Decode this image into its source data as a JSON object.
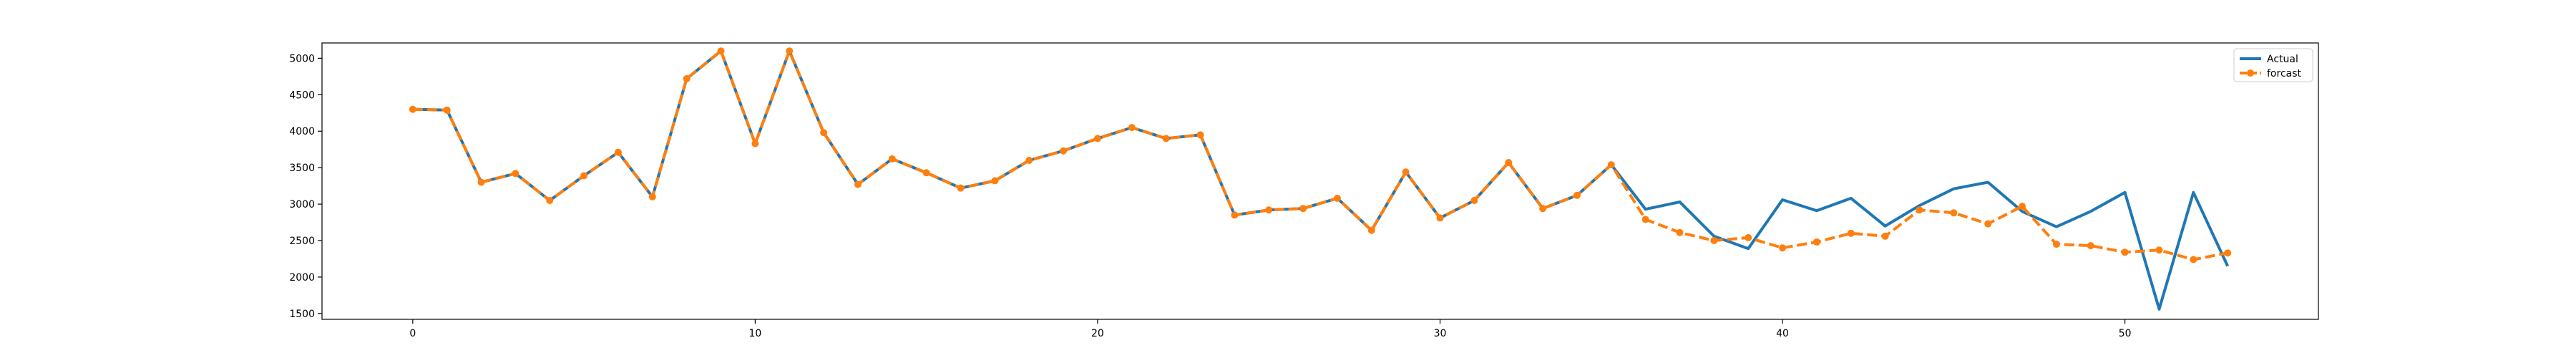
{
  "chart_data": {
    "type": "line",
    "title": "",
    "xlabel": "",
    "ylabel": "",
    "xlim": [
      -2.65,
      55.65
    ],
    "ylim": [
      1420,
      5210
    ],
    "xticks": [
      0,
      10,
      20,
      30,
      40,
      50
    ],
    "yticks": [
      1500,
      2000,
      2500,
      3000,
      3500,
      4000,
      4500,
      5000
    ],
    "grid": false,
    "legend": "top-right",
    "series": [
      {
        "name": "Actual",
        "color": "#1f77b4",
        "style": "solid",
        "marker": "none",
        "x": [
          0,
          1,
          2,
          3,
          4,
          5,
          6,
          7,
          8,
          9,
          10,
          11,
          12,
          13,
          14,
          15,
          16,
          17,
          18,
          19,
          20,
          21,
          22,
          23,
          24,
          25,
          26,
          27,
          28,
          29,
          30,
          31,
          32,
          33,
          34,
          35,
          36,
          37,
          38,
          39,
          40,
          41,
          42,
          43,
          44,
          45,
          46,
          47,
          48,
          49,
          50,
          51,
          52,
          53
        ],
        "values": [
          4300,
          4290,
          3300,
          3420,
          3050,
          3390,
          3710,
          3100,
          4720,
          5100,
          3830,
          5100,
          3980,
          3270,
          3620,
          3430,
          3220,
          3320,
          3600,
          3730,
          3900,
          4050,
          3900,
          3950,
          2850,
          2920,
          2940,
          3080,
          2640,
          3440,
          2810,
          3050,
          3570,
          2940,
          3120,
          3540,
          2930,
          3030,
          2560,
          2390,
          3060,
          2910,
          3080,
          2700,
          2980,
          3210,
          3300,
          2900,
          2690,
          2900,
          3160,
          1560,
          3160,
          2150
        ]
      },
      {
        "name": "forcast",
        "color": "#ff7f0e",
        "style": "dashed",
        "marker": "circle",
        "x": [
          0,
          1,
          2,
          3,
          4,
          5,
          6,
          7,
          8,
          9,
          10,
          11,
          12,
          13,
          14,
          15,
          16,
          17,
          18,
          19,
          20,
          21,
          22,
          23,
          24,
          25,
          26,
          27,
          28,
          29,
          30,
          31,
          32,
          33,
          34,
          35,
          36,
          37,
          38,
          39,
          40,
          41,
          42,
          43,
          44,
          45,
          46,
          47,
          48,
          49,
          50,
          51,
          52,
          53
        ],
        "values": [
          4300,
          4290,
          3300,
          3420,
          3050,
          3390,
          3710,
          3100,
          4720,
          5100,
          3830,
          5100,
          3980,
          3270,
          3620,
          3430,
          3220,
          3320,
          3600,
          3730,
          3900,
          4050,
          3900,
          3950,
          2850,
          2920,
          2940,
          3080,
          2640,
          3440,
          2810,
          3050,
          3570,
          2940,
          3120,
          3540,
          2790,
          2610,
          2500,
          2540,
          2400,
          2480,
          2600,
          2560,
          2920,
          2880,
          2730,
          2970,
          2450,
          2430,
          2340,
          2370,
          2240,
          2330
        ]
      }
    ]
  }
}
